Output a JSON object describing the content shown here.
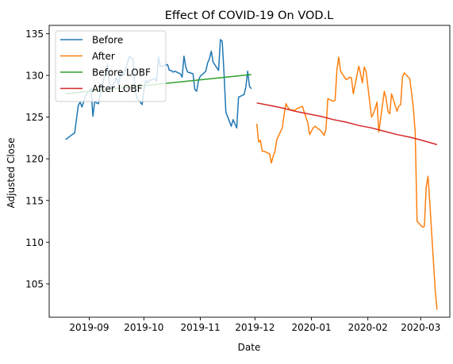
{
  "chart_data": {
    "type": "line",
    "title": "Effect Of COVID-19 On VOD.L",
    "xlabel": "Date",
    "ylabel": "Adjusted Close",
    "xlim": [
      "2019-08-10",
      "2020-03-17"
    ],
    "ylim": [
      101,
      136
    ],
    "x_ticks": [
      {
        "date": "2019-09-01",
        "label": "2019-09"
      },
      {
        "date": "2019-10-01",
        "label": "2019-10"
      },
      {
        "date": "2019-11-01",
        "label": "2019-11"
      },
      {
        "date": "2019-12-01",
        "label": "2019-12"
      },
      {
        "date": "2020-01-01",
        "label": "2020-01"
      },
      {
        "date": "2020-02-01",
        "label": "2020-02"
      },
      {
        "date": "2020-03-01",
        "label": "2020-03"
      }
    ],
    "y_ticks": [
      105,
      110,
      115,
      120,
      125,
      130,
      135
    ],
    "grid": false,
    "legend_position": "top-left",
    "series": [
      {
        "name": "Before",
        "color": "#1f77b4",
        "points": [
          [
            "2019-08-19",
            122.3
          ],
          [
            "2019-08-22",
            122.8
          ],
          [
            "2019-08-24",
            123.1
          ],
          [
            "2019-08-26",
            126.4
          ],
          [
            "2019-08-27",
            126.8
          ],
          [
            "2019-08-28",
            126.2
          ],
          [
            "2019-08-29",
            126.9
          ],
          [
            "2019-08-30",
            127.6
          ],
          [
            "2019-09-02",
            128.4
          ],
          [
            "2019-09-03",
            125.1
          ],
          [
            "2019-09-04",
            126.9
          ],
          [
            "2019-09-05",
            126.7
          ],
          [
            "2019-09-06",
            126.6
          ],
          [
            "2019-09-09",
            129.6
          ],
          [
            "2019-09-10",
            130.4
          ],
          [
            "2019-09-11",
            131.4
          ],
          [
            "2019-09-12",
            129.1
          ],
          [
            "2019-09-13",
            128.4
          ],
          [
            "2019-09-16",
            129.7
          ],
          [
            "2019-09-17",
            128.9
          ],
          [
            "2019-09-18",
            130.0
          ],
          [
            "2019-09-19",
            130.5
          ],
          [
            "2019-09-20",
            130.0
          ],
          [
            "2019-09-23",
            132.3
          ],
          [
            "2019-09-24",
            132.1
          ],
          [
            "2019-09-25",
            132.0
          ],
          [
            "2019-09-26",
            128.8
          ],
          [
            "2019-09-27",
            127.4
          ],
          [
            "2019-09-30",
            126.5
          ],
          [
            "2019-10-01",
            128.2
          ],
          [
            "2019-10-02",
            129.4
          ],
          [
            "2019-10-03",
            129.1
          ],
          [
            "2019-10-04",
            129.4
          ],
          [
            "2019-10-07",
            129.6
          ],
          [
            "2019-10-08",
            129.3
          ],
          [
            "2019-10-09",
            132.2
          ],
          [
            "2019-10-10",
            131.1
          ],
          [
            "2019-10-11",
            131.1
          ],
          [
            "2019-10-14",
            131.3
          ],
          [
            "2019-10-15",
            130.6
          ],
          [
            "2019-10-16",
            130.6
          ],
          [
            "2019-10-17",
            130.4
          ],
          [
            "2019-10-18",
            130.5
          ],
          [
            "2019-10-21",
            130.2
          ],
          [
            "2019-10-22",
            129.8
          ],
          [
            "2019-10-23",
            132.3
          ],
          [
            "2019-10-24",
            131.0
          ],
          [
            "2019-10-25",
            130.4
          ],
          [
            "2019-10-28",
            130.2
          ],
          [
            "2019-10-29",
            128.3
          ],
          [
            "2019-10-30",
            128.1
          ],
          [
            "2019-10-31",
            129.4
          ],
          [
            "2019-11-01",
            129.9
          ],
          [
            "2019-11-04",
            130.5
          ],
          [
            "2019-11-05",
            131.5
          ],
          [
            "2019-11-06",
            132.0
          ],
          [
            "2019-11-07",
            132.9
          ],
          [
            "2019-11-08",
            131.6
          ],
          [
            "2019-11-11",
            130.6
          ],
          [
            "2019-11-12",
            134.3
          ],
          [
            "2019-11-13",
            134.1
          ],
          [
            "2019-11-14",
            130.2
          ],
          [
            "2019-11-15",
            125.6
          ],
          [
            "2019-11-18",
            123.9
          ],
          [
            "2019-11-19",
            124.7
          ],
          [
            "2019-11-20",
            124.2
          ],
          [
            "2019-11-21",
            123.7
          ],
          [
            "2019-11-22",
            127.4
          ],
          [
            "2019-11-25",
            127.7
          ],
          [
            "2019-11-26",
            128.6
          ],
          [
            "2019-11-27",
            130.5
          ],
          [
            "2019-11-28",
            128.7
          ],
          [
            "2019-11-29",
            128.4
          ]
        ]
      },
      {
        "name": "After",
        "color": "#ff7f0e",
        "points": [
          [
            "2019-12-02",
            124.2
          ],
          [
            "2019-12-03",
            122.0
          ],
          [
            "2019-12-04",
            122.2
          ],
          [
            "2019-12-05",
            120.9
          ],
          [
            "2019-12-06",
            120.9
          ],
          [
            "2019-12-09",
            120.6
          ],
          [
            "2019-12-10",
            119.5
          ],
          [
            "2019-12-11",
            120.3
          ],
          [
            "2019-12-12",
            120.9
          ],
          [
            "2019-12-13",
            122.3
          ],
          [
            "2019-12-16",
            123.7
          ],
          [
            "2019-12-17",
            125.3
          ],
          [
            "2019-12-18",
            126.6
          ],
          [
            "2019-12-19",
            126.2
          ],
          [
            "2019-12-20",
            125.9
          ],
          [
            "2019-12-23",
            125.8
          ],
          [
            "2019-12-24",
            126.0
          ],
          [
            "2019-12-27",
            126.3
          ],
          [
            "2019-12-30",
            124.3
          ],
          [
            "2019-12-31",
            122.9
          ],
          [
            "2020-01-02",
            123.7
          ],
          [
            "2020-01-03",
            123.9
          ],
          [
            "2020-01-06",
            123.4
          ],
          [
            "2020-01-07",
            123.1
          ],
          [
            "2020-01-08",
            122.8
          ],
          [
            "2020-01-09",
            123.6
          ],
          [
            "2020-01-10",
            127.2
          ],
          [
            "2020-01-13",
            126.9
          ],
          [
            "2020-01-14",
            127.0
          ],
          [
            "2020-01-15",
            130.7
          ],
          [
            "2020-01-16",
            132.2
          ],
          [
            "2020-01-17",
            130.5
          ],
          [
            "2020-01-20",
            129.5
          ],
          [
            "2020-01-21",
            129.6
          ],
          [
            "2020-01-22",
            129.8
          ],
          [
            "2020-01-23",
            129.7
          ],
          [
            "2020-01-24",
            127.8
          ],
          [
            "2020-01-27",
            131.1
          ],
          [
            "2020-01-28",
            130.2
          ],
          [
            "2020-01-29",
            129.1
          ],
          [
            "2020-01-30",
            131.0
          ],
          [
            "2020-01-31",
            130.5
          ],
          [
            "2020-02-03",
            125.0
          ],
          [
            "2020-02-04",
            125.4
          ],
          [
            "2020-02-05",
            126.0
          ],
          [
            "2020-02-06",
            126.8
          ],
          [
            "2020-02-07",
            123.2
          ],
          [
            "2020-02-10",
            128.1
          ],
          [
            "2020-02-11",
            127.2
          ],
          [
            "2020-02-12",
            125.7
          ],
          [
            "2020-02-13",
            125.4
          ],
          [
            "2020-02-14",
            127.8
          ],
          [
            "2020-02-17",
            125.7
          ],
          [
            "2020-02-18",
            126.3
          ],
          [
            "2020-02-19",
            126.5
          ],
          [
            "2020-02-20",
            129.8
          ],
          [
            "2020-02-21",
            130.3
          ],
          [
            "2020-02-24",
            129.6
          ],
          [
            "2020-02-25",
            127.9
          ],
          [
            "2020-02-26",
            126.0
          ],
          [
            "2020-02-27",
            123.1
          ],
          [
            "2020-02-28",
            112.5
          ],
          [
            "2020-03-02",
            111.8
          ],
          [
            "2020-03-03",
            111.9
          ],
          [
            "2020-03-04",
            116.6
          ],
          [
            "2020-03-05",
            117.9
          ],
          [
            "2020-03-06",
            114.7
          ],
          [
            "2020-03-09",
            104.2
          ],
          [
            "2020-03-10",
            101.9
          ]
        ]
      },
      {
        "name": "Before LOBF",
        "color": "#2ca02c",
        "points": [
          [
            "2019-08-19",
            127.8
          ],
          [
            "2019-11-29",
            130.1
          ]
        ]
      },
      {
        "name": "After LOBF",
        "color": "#d62728",
        "points": [
          [
            "2019-12-02",
            126.7
          ],
          [
            "2019-12-09",
            126.4
          ],
          [
            "2019-12-16",
            126.1
          ],
          [
            "2019-12-23",
            125.7
          ],
          [
            "2019-12-30",
            125.4
          ],
          [
            "2020-01-06",
            125.1
          ],
          [
            "2020-01-13",
            124.7
          ],
          [
            "2020-01-20",
            124.4
          ],
          [
            "2020-01-27",
            124.0
          ],
          [
            "2020-02-03",
            123.7
          ],
          [
            "2020-02-10",
            123.3
          ],
          [
            "2020-02-17",
            122.9
          ],
          [
            "2020-02-24",
            122.6
          ],
          [
            "2020-03-02",
            122.2
          ],
          [
            "2020-03-10",
            121.7
          ]
        ]
      }
    ]
  }
}
